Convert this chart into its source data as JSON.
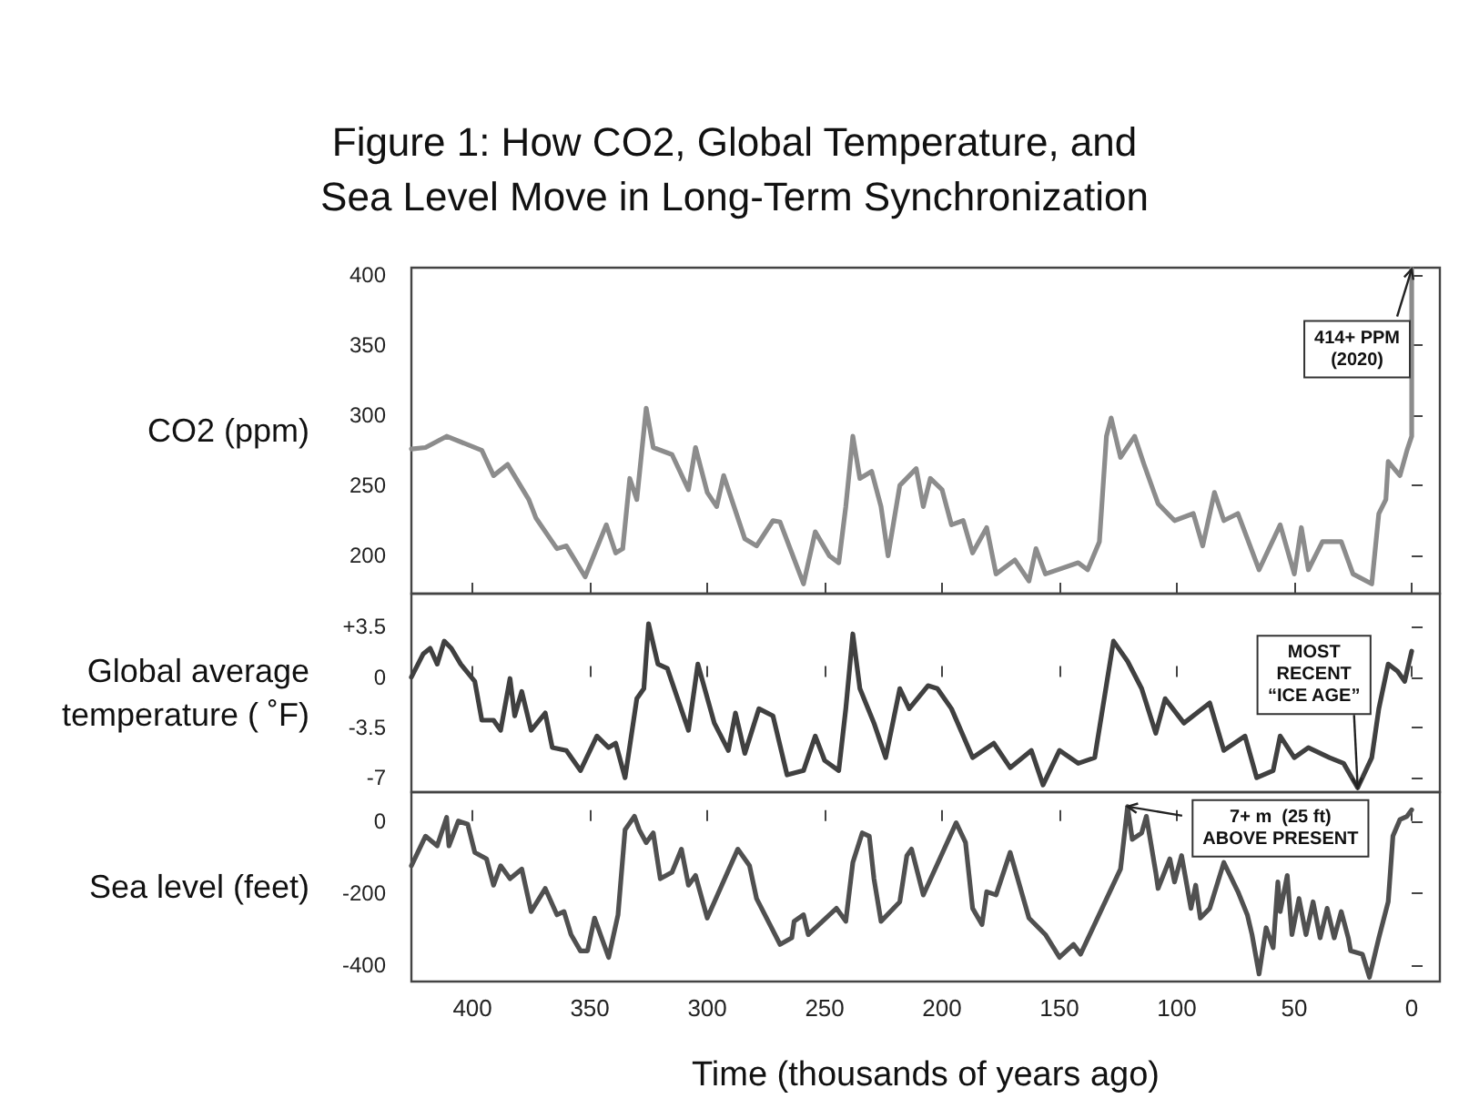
{
  "chart_data": [
    {
      "type": "line",
      "title": "Figure 1: How CO2, Global Temperature, and\nSea Level Move in Long-Term Synchronization",
      "ylabel": "CO2 (ppm)",
      "color": "#8c8c8c",
      "xlim": [
        426,
        -12
      ],
      "xticks": [
        400,
        350,
        300,
        250,
        200,
        150,
        100,
        50,
        0
      ],
      "ylim": [
        173,
        405
      ],
      "yticks": [
        200,
        250,
        300,
        350,
        400
      ],
      "tick_labels": "y",
      "x": [
        426,
        420,
        411,
        396,
        391,
        385,
        376,
        373,
        364,
        360,
        352,
        343,
        339,
        336,
        333,
        330,
        326,
        323,
        315,
        308,
        305,
        300,
        296,
        293,
        284,
        279,
        272,
        269,
        264,
        259,
        254,
        248,
        244,
        241,
        238,
        235,
        230,
        226,
        223,
        218,
        211,
        208,
        205,
        200,
        196,
        191,
        187,
        181,
        177,
        169,
        163,
        160,
        156,
        142,
        138,
        133,
        130,
        128,
        124,
        118,
        114,
        108,
        101,
        93,
        89,
        84,
        80,
        74,
        65,
        56,
        50,
        47,
        44,
        38,
        30,
        25,
        17,
        14,
        11,
        10,
        5,
        2,
        0,
        0
      ],
      "values": [
        276,
        277,
        285,
        275,
        257,
        265,
        240,
        227,
        205,
        207,
        185,
        222,
        202,
        205,
        255,
        240,
        305,
        277,
        272,
        247,
        277,
        245,
        235,
        257,
        212,
        207,
        225,
        224,
        202,
        180,
        217,
        200,
        195,
        235,
        285,
        255,
        260,
        235,
        200,
        250,
        262,
        235,
        255,
        247,
        222,
        225,
        202,
        220,
        187,
        197,
        182,
        205,
        187,
        195,
        190,
        210,
        285,
        298,
        270,
        285,
        265,
        237,
        225,
        230,
        207,
        245,
        225,
        230,
        190,
        222,
        187,
        220,
        190,
        210,
        210,
        187,
        180,
        230,
        240,
        267,
        257,
        275,
        285,
        404
      ],
      "annotations": [
        {
          "text": "414+ PPM\n(2020)",
          "x": 0,
          "y": 404
        }
      ]
    },
    {
      "type": "line",
      "ylabel": "Global average\ntemperature ( ˚F)",
      "color": "#404040",
      "xlim": [
        426,
        -12
      ],
      "xticks": [
        400,
        350,
        300,
        250,
        200,
        150,
        100,
        50,
        0
      ],
      "ylim": [
        -8,
        5.8
      ],
      "yticks": [
        {
          "value": 3.5,
          "label": "+3.5"
        },
        0,
        -3.5,
        -7
      ],
      "tick_labels": "y",
      "x": [
        426,
        421,
        418,
        415,
        412,
        409,
        405,
        399,
        396,
        391,
        388,
        384,
        382,
        379,
        375,
        369,
        366,
        360,
        354,
        347,
        342,
        339,
        335,
        330,
        327,
        325,
        321,
        317,
        308,
        304,
        297,
        291,
        288,
        284,
        278,
        272,
        266,
        259,
        254,
        250,
        244,
        241,
        238,
        235,
        229,
        224,
        218,
        214,
        206,
        202,
        196,
        187,
        178,
        171,
        162,
        157,
        150,
        142,
        135,
        127,
        121,
        115,
        109,
        105,
        97,
        86,
        80,
        71,
        66,
        59,
        56,
        50,
        44,
        35,
        29,
        23,
        17,
        14,
        10,
        6,
        3,
        0
      ],
      "values": [
        0,
        1.6,
        2.0,
        0.9,
        2.5,
        2.0,
        0.9,
        -0.3,
        -3.0,
        -3.0,
        -3.7,
        -0.1,
        -2.7,
        -1.0,
        -3.7,
        -2.5,
        -4.9,
        -5.1,
        -6.5,
        -4.1,
        -4.9,
        -4.6,
        -7.0,
        -1.5,
        -0.8,
        3.7,
        0.9,
        0.6,
        -3.7,
        0.9,
        -3.2,
        -5.1,
        -2.5,
        -5.3,
        -2.2,
        -2.7,
        -6.8,
        -6.5,
        -4.1,
        -5.8,
        -6.5,
        -2.2,
        3.0,
        -0.8,
        -3.2,
        -5.6,
        -0.8,
        -2.2,
        -0.6,
        -0.8,
        -2.2,
        -5.6,
        -4.6,
        -6.3,
        -5.1,
        -7.5,
        -5.1,
        -6.0,
        -5.6,
        2.5,
        1.1,
        -0.8,
        -3.9,
        -1.5,
        -3.2,
        -1.8,
        -5.1,
        -4.1,
        -7.0,
        -6.5,
        -4.1,
        -5.6,
        -4.9,
        -5.6,
        -6.0,
        -7.7,
        -5.6,
        -2.2,
        0.9,
        0.4,
        -0.3,
        1.8
      ],
      "annotations": [
        {
          "text": "MOST\nRECENT\n“ICE AGE”",
          "x": 23,
          "y": -7.7
        }
      ]
    },
    {
      "type": "line",
      "ylabel": "Sea level (feet)",
      "xlabel": "Time (thousands of years ago)",
      "color": "#505050",
      "xlim": [
        426,
        -12
      ],
      "xticks": [
        400,
        350,
        300,
        250,
        200,
        150,
        100,
        50,
        0
      ],
      "ylim": [
        -445,
        80
      ],
      "yticks": [
        0,
        -200,
        -400
      ],
      "x": [
        426,
        420,
        415,
        411,
        410,
        406,
        402,
        399,
        394,
        391,
        388,
        384,
        379,
        375,
        369,
        364,
        361,
        358,
        354,
        351,
        348,
        342,
        338,
        335,
        331,
        329,
        326,
        323,
        320,
        315,
        311,
        308,
        305,
        300,
        287,
        282,
        279,
        269,
        264,
        263,
        259,
        257,
        245,
        241,
        238,
        234,
        231,
        229,
        226,
        218,
        215,
        213,
        208,
        194,
        190,
        187,
        183,
        181,
        177,
        171,
        163,
        156,
        150,
        144,
        141,
        124,
        121,
        119,
        115,
        113,
        109,
        108,
        103,
        101,
        98,
        94,
        92,
        90,
        86,
        80,
        74,
        70,
        68,
        65,
        62,
        59,
        57,
        56,
        53,
        51,
        48,
        45,
        42,
        39,
        36,
        33,
        30,
        27,
        26,
        21,
        18,
        14,
        10,
        8,
        5,
        2,
        0
      ],
      "values": [
        -124,
        -42,
        -69,
        10,
        -69,
        0,
        -9,
        -87,
        -105,
        -178,
        -124,
        -160,
        -133,
        -251,
        -187,
        -260,
        -251,
        -315,
        -360,
        -360,
        -269,
        -378,
        -260,
        -24,
        13,
        -24,
        -60,
        -33,
        -160,
        -142,
        -78,
        -178,
        -151,
        -269,
        -78,
        -124,
        -215,
        -342,
        -324,
        -278,
        -260,
        -315,
        -242,
        -278,
        -115,
        -33,
        -42,
        -160,
        -278,
        -224,
        -96,
        -78,
        -205,
        -5,
        -60,
        -242,
        -287,
        -196,
        -205,
        -87,
        -269,
        -315,
        -378,
        -342,
        -369,
        -133,
        40,
        -51,
        -33,
        13,
        -142,
        -187,
        -105,
        -169,
        -96,
        -242,
        -178,
        -269,
        -242,
        -115,
        -196,
        -260,
        -315,
        -424,
        -296,
        -351,
        -169,
        -251,
        -151,
        -315,
        -215,
        -315,
        -224,
        -324,
        -242,
        -324,
        -251,
        -324,
        -360,
        -369,
        -433,
        -324,
        -224,
        -42,
        4,
        13,
        31
      ],
      "annotations": [
        {
          "text": "7+ m  (25 ft)\nABOVE PRESENT",
          "x": 121,
          "y": 40
        }
      ]
    }
  ]
}
